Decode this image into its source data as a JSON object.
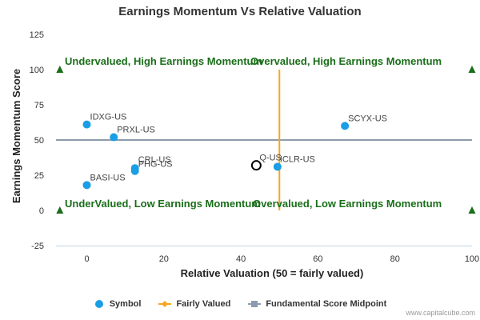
{
  "chart_data": {
    "type": "scatter",
    "title": "Earnings Momentum Vs Relative Valuation",
    "xlabel": "Relative Valuation (50 = fairly valued)",
    "ylabel": "Earnings Momentum Score",
    "xlim": [
      -8,
      100
    ],
    "ylim": [
      -25,
      125
    ],
    "xticks": [
      "0",
      "20",
      "40",
      "60",
      "80",
      "100"
    ],
    "yticks": [
      "-25",
      "0",
      "25",
      "50",
      "75",
      "100",
      "125"
    ],
    "grid": false,
    "legend_position": "bottom",
    "quadrant_labels": {
      "top_left": "Undervalued, High Earnings Momentum",
      "top_right": "Overvalued, High Earnings Momentum",
      "bottom_left": "UnderValued, Low Earnings Momentum",
      "bottom_right": "Overvalued, Low Earnings Momentum"
    },
    "series": [
      {
        "name": "Symbol",
        "color": "#1a9ee5",
        "points": [
          {
            "label": "IDXG-US",
            "x": 0,
            "y": 61
          },
          {
            "label": "PRXL-US",
            "x": 7,
            "y": 52
          },
          {
            "label": "SCYX-US",
            "x": 67,
            "y": 60
          },
          {
            "label": "CRL-US",
            "x": 12.5,
            "y": 30
          },
          {
            "label": "PHG-US",
            "x": 12.5,
            "y": 28
          },
          {
            "label": "ICLR-US",
            "x": 49.5,
            "y": 31
          },
          {
            "label": "BASI-US",
            "x": 0,
            "y": 18
          }
        ]
      },
      {
        "name": "Fairly Valued",
        "color": "#f5a623",
        "x": 50,
        "y_range": [
          0,
          100
        ]
      },
      {
        "name": "Fundamental Score Midpoint",
        "color": "#8c9cad",
        "y": 50,
        "x_range": [
          -8,
          100
        ]
      }
    ],
    "highlight": {
      "label": "Q-US",
      "x": 44,
      "y": 32
    },
    "corner_markers": [
      {
        "x": -7,
        "y": 100
      },
      {
        "x": 100,
        "y": 100
      },
      {
        "x": -7,
        "y": 0
      },
      {
        "x": 100,
        "y": 0
      }
    ],
    "marker_color": "#1a6e1a",
    "quadrant_color": "#1a6e1a"
  },
  "watermark": "www.capitalcube.com"
}
